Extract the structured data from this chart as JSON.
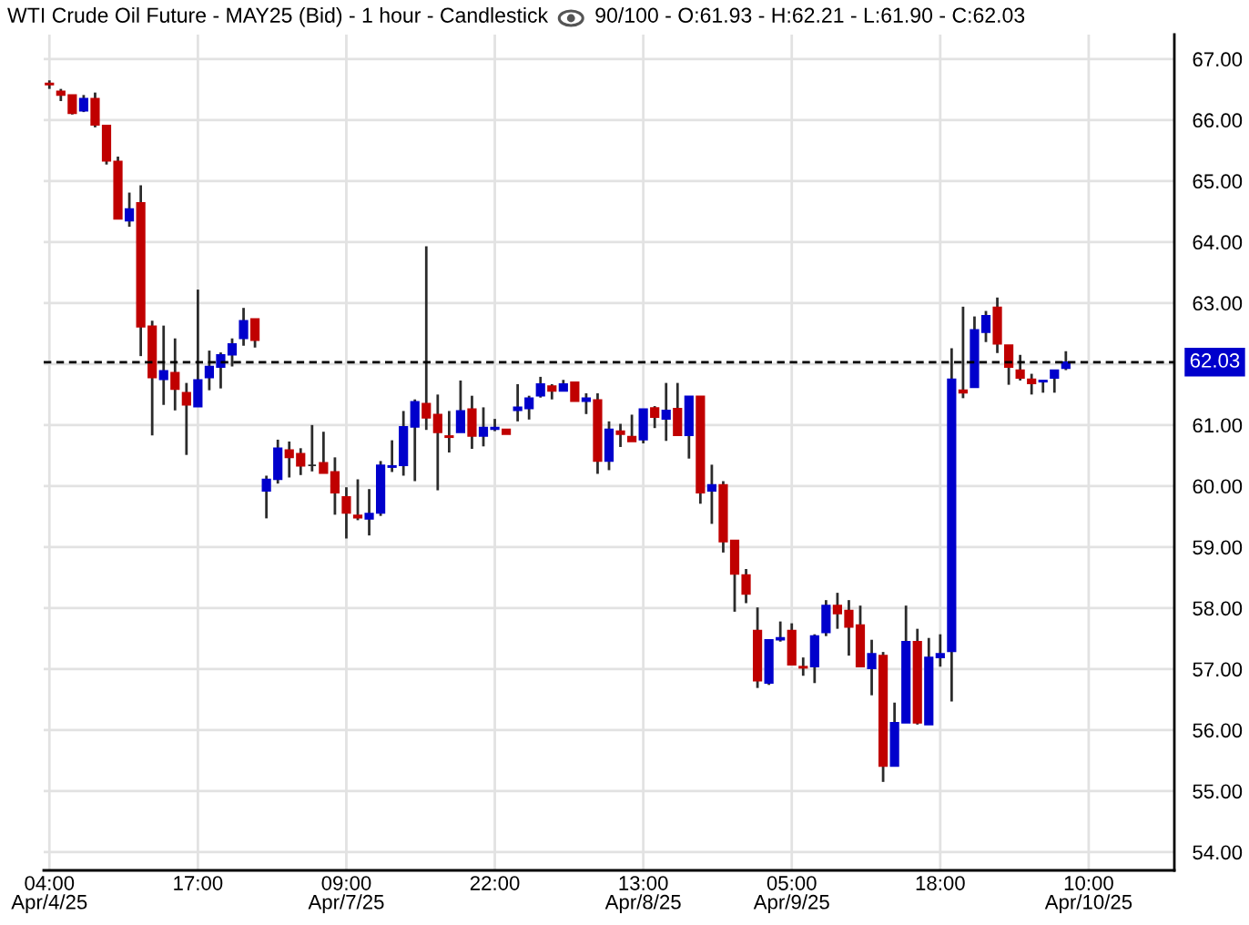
{
  "chart_data": {
    "type": "candlestick",
    "title": "WTI Crude Oil Future - MAY25 (Bid) - 1 hour - Candlestick",
    "subtitle": "90/100 - O:61.93 - H:62.21 - L:61.90 - C:62.03",
    "categories": [
      "04:00\nApr/4/25",
      null,
      null,
      null,
      null,
      null,
      null,
      null,
      null,
      null,
      null,
      null,
      null,
      "17:00",
      null,
      null,
      null,
      null,
      null,
      null,
      null,
      null,
      null,
      null,
      null,
      null,
      "09:00\nApr/7/25",
      null,
      null,
      null,
      null,
      null,
      null,
      null,
      null,
      null,
      null,
      null,
      null,
      "22:00",
      null,
      null,
      null,
      null,
      null,
      null,
      null,
      null,
      null,
      null,
      null,
      null,
      "13:00\nApr/8/25",
      null,
      null,
      null,
      null,
      null,
      null,
      null,
      null,
      null,
      null,
      null,
      null,
      "05:00\nApr/9/25",
      null,
      null,
      null,
      null,
      null,
      null,
      null,
      null,
      null,
      null,
      null,
      null,
      "18:00",
      null,
      null,
      null,
      null,
      null,
      null,
      null,
      null,
      null,
      null,
      null,
      null,
      "10:00\nApr/10/25",
      null,
      null,
      null,
      null,
      null,
      null,
      null
    ],
    "ohlc": [
      [
        66.6,
        66.65,
        66.51,
        66.58
      ],
      [
        66.47,
        66.51,
        66.31,
        66.41
      ],
      [
        66.41,
        66.41,
        66.09,
        66.11
      ],
      [
        66.15,
        66.41,
        66.13,
        66.35
      ],
      [
        66.35,
        66.45,
        65.88,
        65.92
      ],
      [
        65.91,
        65.91,
        65.27,
        65.33
      ],
      [
        65.32,
        65.4,
        64.38,
        64.38
      ],
      [
        64.35,
        64.81,
        64.25,
        64.54
      ],
      [
        64.64,
        64.93,
        62.13,
        62.61
      ],
      [
        62.62,
        62.71,
        60.83,
        61.78
      ],
      [
        61.75,
        62.63,
        61.33,
        61.89
      ],
      [
        61.86,
        62.42,
        61.24,
        61.59
      ],
      [
        61.53,
        61.69,
        60.51,
        61.33
      ],
      [
        61.3,
        63.22,
        61.3,
        61.74
      ],
      [
        61.78,
        62.22,
        61.57,
        61.96
      ],
      [
        61.95,
        62.19,
        61.6,
        62.15
      ],
      [
        62.15,
        62.42,
        61.96,
        62.33
      ],
      [
        62.42,
        62.92,
        62.3,
        62.71
      ],
      [
        62.74,
        62.74,
        62.27,
        62.39
      ],
      [
        59.92,
        60.17,
        59.47,
        60.11
      ],
      [
        60.11,
        60.76,
        60.04,
        60.62
      ],
      [
        60.59,
        60.73,
        60.14,
        60.47
      ],
      [
        60.53,
        60.62,
        60.18,
        60.33
      ],
      [
        60.34,
        61.0,
        60.24,
        60.34
      ],
      [
        60.38,
        60.89,
        60.21,
        60.21
      ],
      [
        60.23,
        60.47,
        59.53,
        59.89
      ],
      [
        59.82,
        59.98,
        59.14,
        59.56
      ],
      [
        59.52,
        60.11,
        59.44,
        59.48
      ],
      [
        59.46,
        59.95,
        59.19,
        59.55
      ],
      [
        59.56,
        60.41,
        59.51,
        60.34
      ],
      [
        60.31,
        60.75,
        60.23,
        60.33
      ],
      [
        60.34,
        61.23,
        60.17,
        60.97
      ],
      [
        60.97,
        61.42,
        60.08,
        61.38
      ],
      [
        61.35,
        63.93,
        60.92,
        61.12
      ],
      [
        61.17,
        61.5,
        59.93,
        60.88
      ],
      [
        60.82,
        61.23,
        60.55,
        60.8
      ],
      [
        60.88,
        61.73,
        60.88,
        61.23
      ],
      [
        61.26,
        61.48,
        60.61,
        60.82
      ],
      [
        60.82,
        61.29,
        60.65,
        60.96
      ],
      [
        60.93,
        61.1,
        60.9,
        60.96
      ],
      [
        60.93,
        60.93,
        60.85,
        60.85
      ],
      [
        61.24,
        61.67,
        61.06,
        61.29
      ],
      [
        61.27,
        61.48,
        61.09,
        61.44
      ],
      [
        61.48,
        61.79,
        61.45,
        61.67
      ],
      [
        61.64,
        61.67,
        61.42,
        61.56
      ],
      [
        61.56,
        61.74,
        61.56,
        61.67
      ],
      [
        61.7,
        61.7,
        61.39,
        61.39
      ],
      [
        61.39,
        61.52,
        61.18,
        61.44
      ],
      [
        61.41,
        61.52,
        60.2,
        60.41
      ],
      [
        60.41,
        61.06,
        60.26,
        60.93
      ],
      [
        60.9,
        61.02,
        60.64,
        60.85
      ],
      [
        60.81,
        61.17,
        60.73,
        60.73
      ],
      [
        60.76,
        61.26,
        60.7,
        61.26
      ],
      [
        61.28,
        61.31,
        60.95,
        61.13
      ],
      [
        61.1,
        61.69,
        60.74,
        61.24
      ],
      [
        61.27,
        61.69,
        60.83,
        60.83
      ],
      [
        60.83,
        61.47,
        60.45,
        61.47
      ],
      [
        61.47,
        61.47,
        59.71,
        59.89
      ],
      [
        59.92,
        60.35,
        59.38,
        60.02
      ],
      [
        60.02,
        60.08,
        58.91,
        59.09
      ],
      [
        59.11,
        59.11,
        57.94,
        58.56
      ],
      [
        58.54,
        58.64,
        58.08,
        58.23
      ],
      [
        57.63,
        58.01,
        56.69,
        56.81
      ],
      [
        56.77,
        57.48,
        56.74,
        57.48
      ],
      [
        57.48,
        57.78,
        57.45,
        57.51
      ],
      [
        57.63,
        57.75,
        57.07,
        57.07
      ],
      [
        57.04,
        57.19,
        56.89,
        57.02
      ],
      [
        57.04,
        57.57,
        56.77,
        57.54
      ],
      [
        57.6,
        58.13,
        57.54,
        58.04
      ],
      [
        58.04,
        58.25,
        57.66,
        57.91
      ],
      [
        57.96,
        58.13,
        57.22,
        57.69
      ],
      [
        57.72,
        58.04,
        57.04,
        57.04
      ],
      [
        57.01,
        57.48,
        56.57,
        57.25
      ],
      [
        57.22,
        57.28,
        55.15,
        55.41
      ],
      [
        55.41,
        56.45,
        55.41,
        56.12
      ],
      [
        56.12,
        58.04,
        56.12,
        57.45
      ],
      [
        57.45,
        57.66,
        56.09,
        56.12
      ],
      [
        56.09,
        57.51,
        56.09,
        57.19
      ],
      [
        57.19,
        57.57,
        57.04,
        57.25
      ],
      [
        57.29,
        62.26,
        56.47,
        61.75
      ],
      [
        61.57,
        62.94,
        61.44,
        61.53
      ],
      [
        61.62,
        62.78,
        61.62,
        62.56
      ],
      [
        62.52,
        62.87,
        62.36,
        62.79
      ],
      [
        62.93,
        63.09,
        62.18,
        62.33
      ],
      [
        62.31,
        62.31,
        61.66,
        61.95
      ],
      [
        61.9,
        62.15,
        61.73,
        61.77
      ],
      [
        61.75,
        61.84,
        61.5,
        61.68
      ],
      [
        61.71,
        61.73,
        61.53,
        61.73
      ],
      [
        61.77,
        61.9,
        61.53,
        61.9
      ],
      [
        61.93,
        62.21,
        61.9,
        62.03
      ],
      null,
      null,
      null,
      null,
      null,
      null,
      null,
      null,
      null
    ],
    "colors": [
      "#c00000",
      "#c00000",
      "#c00000",
      "#0000cc",
      "#c00000",
      "#c00000",
      "#c00000",
      "#0000cc",
      "#c00000",
      "#c00000",
      "#0000cc",
      "#c00000",
      "#c00000",
      "#0000cc",
      "#0000cc",
      "#0000cc",
      "#0000cc",
      "#0000cc",
      "#c00000",
      "#0000cc",
      "#0000cc",
      "#c00000",
      "#c00000",
      "#2b2b2b",
      "#c00000",
      "#c00000",
      "#c00000",
      "#c00000",
      "#0000cc",
      "#0000cc",
      "#0000cc",
      "#0000cc",
      "#0000cc",
      "#c00000",
      "#c00000",
      "#c00000",
      "#0000cc",
      "#c00000",
      "#0000cc",
      "#0000cc",
      "#c00000",
      "#0000cc",
      "#0000cc",
      "#0000cc",
      "#c00000",
      "#0000cc",
      "#c00000",
      "#0000cc",
      "#c00000",
      "#0000cc",
      "#c00000",
      "#c00000",
      "#0000cc",
      "#c00000",
      "#0000cc",
      "#c00000",
      "#0000cc",
      "#c00000",
      "#0000cc",
      "#c00000",
      "#c00000",
      "#c00000",
      "#c00000",
      "#0000cc",
      "#0000cc",
      "#c00000",
      "#c00000",
      "#0000cc",
      "#0000cc",
      "#c00000",
      "#c00000",
      "#c00000",
      "#0000cc",
      "#c00000",
      "#0000cc",
      "#0000cc",
      "#c00000",
      "#0000cc",
      "#0000cc",
      "#0000cc",
      "#c00000",
      "#0000cc",
      "#0000cc",
      "#c00000",
      "#c00000",
      "#c00000",
      "#c00000",
      "#0000cc",
      "#0000cc",
      "#0000cc",
      null,
      null,
      null,
      null,
      null,
      null,
      null,
      null,
      null
    ],
    "ylim": [
      53.7,
      67.4
    ],
    "yticks": [
      {
        "value": 54,
        "label": "54.00"
      },
      {
        "value": 55,
        "label": "55.00"
      },
      {
        "value": 56,
        "label": "56.00"
      },
      {
        "value": 57,
        "label": "57.00"
      },
      {
        "value": 58,
        "label": "58.00"
      },
      {
        "value": 59,
        "label": "59.00"
      },
      {
        "value": 60,
        "label": "60.00"
      },
      {
        "value": 61,
        "label": "61.00"
      },
      {
        "value": 62,
        "label": null
      },
      {
        "value": 63,
        "label": "63.00"
      },
      {
        "value": 64,
        "label": "64.00"
      },
      {
        "value": 65,
        "label": "65.00"
      },
      {
        "value": 66,
        "label": "66.00"
      },
      {
        "value": 67,
        "label": "67.00"
      }
    ],
    "grid": true,
    "ref_lines": [
      {
        "axis": "y",
        "value": 62.03,
        "label": "62.03",
        "color": "#000000",
        "line_style": "dashed"
      }
    ]
  }
}
